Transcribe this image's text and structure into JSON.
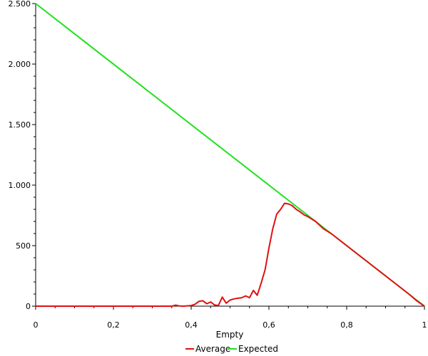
{
  "chart_data": {
    "type": "line",
    "title": "",
    "xlabel": "Empty",
    "ylabel": "",
    "xlim": [
      0,
      1
    ],
    "ylim": [
      0,
      2500
    ],
    "x_ticks": [
      0,
      0.2,
      0.4,
      0.6,
      0.8,
      1
    ],
    "x_tick_labels": [
      "0",
      "0,2",
      "0,4",
      "0,6",
      "0,8",
      "1"
    ],
    "y_ticks": [
      0,
      500,
      1000,
      1500,
      2000,
      2500
    ],
    "y_tick_labels": [
      "0",
      "500",
      "1.000",
      "1.500",
      "2.000",
      "2.500"
    ],
    "grid": false,
    "legend_position": "bottom-center",
    "series": [
      {
        "name": "Average",
        "color": "#e01010",
        "points": [
          [
            0,
            0
          ],
          [
            0.35,
            0
          ],
          [
            0.36,
            8
          ],
          [
            0.37,
            2
          ],
          [
            0.38,
            0
          ],
          [
            0.4,
            5
          ],
          [
            0.41,
            15
          ],
          [
            0.42,
            40
          ],
          [
            0.43,
            45
          ],
          [
            0.44,
            20
          ],
          [
            0.45,
            35
          ],
          [
            0.46,
            10
          ],
          [
            0.47,
            5
          ],
          [
            0.48,
            75
          ],
          [
            0.49,
            25
          ],
          [
            0.5,
            50
          ],
          [
            0.51,
            60
          ],
          [
            0.52,
            65
          ],
          [
            0.53,
            70
          ],
          [
            0.54,
            85
          ],
          [
            0.55,
            70
          ],
          [
            0.56,
            130
          ],
          [
            0.57,
            90
          ],
          [
            0.58,
            190
          ],
          [
            0.59,
            300
          ],
          [
            0.6,
            480
          ],
          [
            0.61,
            640
          ],
          [
            0.62,
            760
          ],
          [
            0.63,
            800
          ],
          [
            0.64,
            850
          ],
          [
            0.65,
            845
          ],
          [
            0.66,
            830
          ],
          [
            0.67,
            800
          ],
          [
            0.68,
            780
          ],
          [
            0.69,
            755
          ],
          [
            0.7,
            740
          ],
          [
            0.72,
            700
          ],
          [
            0.74,
            640
          ],
          [
            0.76,
            600
          ],
          [
            0.78,
            550
          ],
          [
            0.8,
            500
          ],
          [
            0.82,
            450
          ],
          [
            0.84,
            400
          ],
          [
            0.86,
            350
          ],
          [
            0.88,
            300
          ],
          [
            0.9,
            250
          ],
          [
            0.92,
            200
          ],
          [
            0.94,
            150
          ],
          [
            0.96,
            100
          ],
          [
            0.98,
            45
          ],
          [
            1.0,
            0
          ]
        ]
      },
      {
        "name": "Expected",
        "color": "#22e01e",
        "points": [
          [
            0,
            2500
          ],
          [
            0.64,
            900
          ],
          [
            0.66,
            850
          ],
          [
            0.7,
            750
          ],
          [
            0.8,
            500
          ],
          [
            0.9,
            250
          ],
          [
            1.0,
            0
          ]
        ]
      }
    ]
  }
}
